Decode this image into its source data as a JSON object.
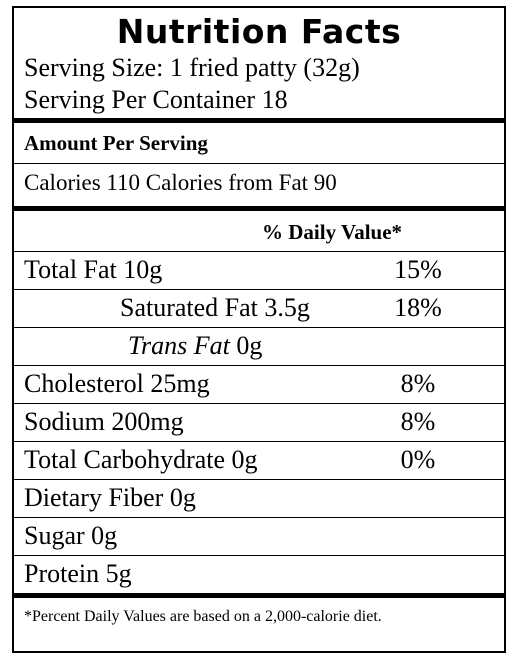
{
  "title": "Nutrition Facts",
  "serving_size": "Serving Size: 1 fried patty (32g)",
  "servings_per_container": "Serving Per Container 18",
  "amount_per_serving": "Amount Per Serving",
  "calories_line": "Calories 110 Calories from Fat 90",
  "daily_value_header": "% Daily Value*",
  "nutrients": [
    {
      "label": "Total Fat 10g",
      "dv": "15%"
    },
    {
      "label": "Saturated Fat 3.5g",
      "dv": "18%"
    },
    {
      "label_italic": "Trans Fat",
      "label_rest": " 0g",
      "dv": ""
    },
    {
      "label": "Cholesterol 25mg",
      "dv": "8%"
    },
    {
      "label": "Sodium 200mg",
      "dv": "8%"
    },
    {
      "label": "Total Carbohydrate 0g",
      "dv": "0%"
    },
    {
      "label": "Dietary Fiber 0g",
      "dv": ""
    },
    {
      "label": "Sugar 0g",
      "dv": ""
    },
    {
      "label": "Protein 5g",
      "dv": ""
    }
  ],
  "footnote": "*Percent Daily Values are based on a 2,000-calorie diet."
}
